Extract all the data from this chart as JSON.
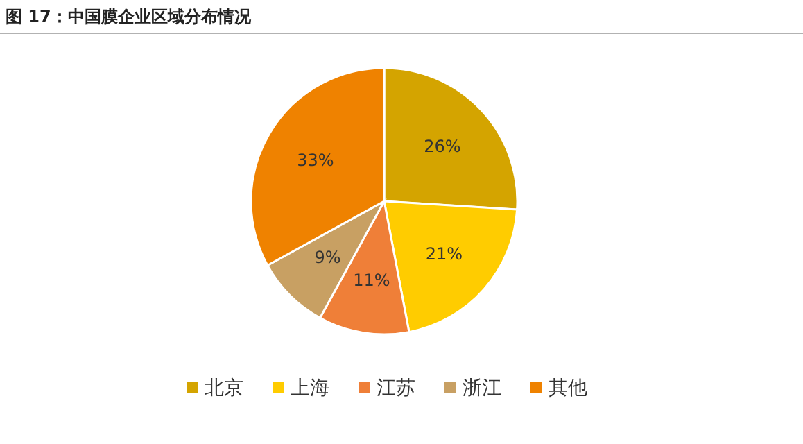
{
  "chart_data": {
    "type": "pie",
    "title": "图 17：中国膜企业区域分布情况",
    "categories": [
      "北京",
      "上海",
      "江苏",
      "浙江",
      "其他"
    ],
    "values": [
      26,
      21,
      11,
      9,
      33
    ],
    "colors": [
      "#d4a400",
      "#ffcc00",
      "#ef7f38",
      "#c8a063",
      "#ef8200"
    ],
    "value_labels": [
      "26%",
      "21%",
      "11%",
      "9%",
      "33%"
    ],
    "legend": "bottom"
  }
}
